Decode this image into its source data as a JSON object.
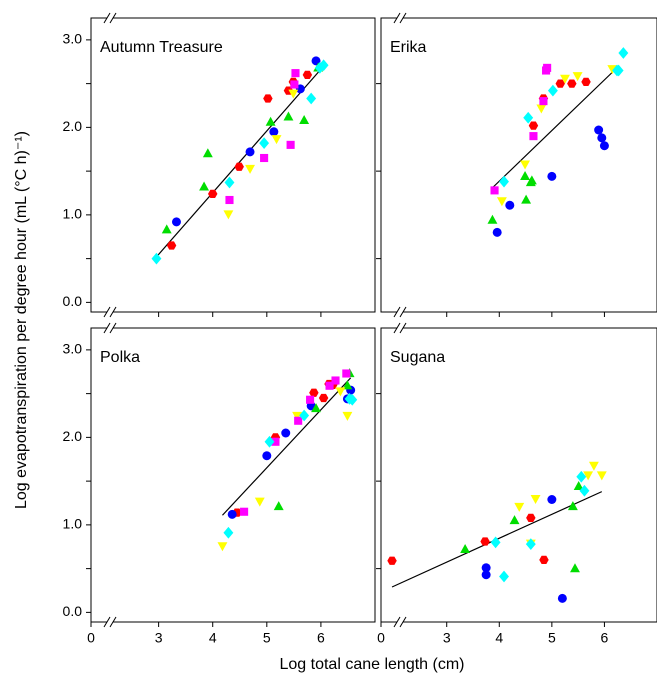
{
  "ylabel": "Log evapotranspiration per degree hour (mL (°C h)⁻¹)",
  "xlabel": "Log total cane length (cm)",
  "chart_data": [
    {
      "type": "scatter",
      "title": "Autumn Treasure",
      "x_break": true,
      "xlim": [
        1.75,
        7.0
      ],
      "ylim": [
        -0.11,
        3.25
      ],
      "xticks": [
        3,
        4,
        5,
        6
      ],
      "yticks": [
        {
          "value": 0,
          "label": "0.0"
        },
        0.5,
        {
          "value": 1,
          "label": "1.0"
        },
        1.5,
        {
          "value": 2,
          "label": "2.0"
        },
        2.5,
        {
          "value": 3,
          "label": "3.0"
        }
      ],
      "series": [
        {
          "color": "#ff0000",
          "marker": "hexagon",
          "x": [
            3.24,
            4.0,
            4.49,
            5.02,
            5.4,
            5.49,
            5.75
          ],
          "values": [
            0.65,
            1.24,
            1.55,
            2.33,
            2.42,
            2.52,
            2.6
          ]
        },
        {
          "color": "#0000ff",
          "marker": "circle",
          "x": [
            3.33,
            4.69,
            5.13,
            5.62,
            5.91
          ],
          "values": [
            0.92,
            1.72,
            1.95,
            2.44,
            2.76
          ]
        },
        {
          "color": "#00dd00",
          "marker": "triangle-up",
          "x": [
            3.15,
            3.84,
            3.91,
            5.07,
            5.4,
            5.69,
            5.95
          ],
          "values": [
            0.83,
            1.32,
            1.7,
            2.06,
            2.12,
            2.08,
            2.68
          ]
        },
        {
          "color": "#ffff00",
          "marker": "triangle-down",
          "x": [
            4.29,
            4.69,
            5.18,
            5.49
          ],
          "values": [
            1.01,
            1.53,
            1.87,
            2.39
          ]
        },
        {
          "color": "#ff00ff",
          "marker": "square",
          "x": [
            4.31,
            4.95,
            5.44,
            5.53,
            5.51
          ],
          "values": [
            1.17,
            1.65,
            1.8,
            2.62,
            2.49
          ]
        },
        {
          "color": "#00ffff",
          "marker": "diamond",
          "x": [
            2.96,
            4.31,
            4.95,
            5.82,
            5.98,
            6.05
          ],
          "values": [
            0.5,
            1.37,
            1.82,
            2.33,
            2.68,
            2.71
          ]
        }
      ],
      "fit": {
        "x": [
          2.96,
          6.05
        ],
        "values": [
          0.52,
          2.7
        ]
      }
    },
    {
      "type": "scatter",
      "title": "Erika",
      "x_break": true,
      "xlim": [
        1.75,
        7.0
      ],
      "ylim": [
        -0.11,
        3.25
      ],
      "xticks": [
        3,
        4,
        5,
        6
      ],
      "yticks": [
        0.5,
        1.5,
        2.5
      ],
      "series": [
        {
          "color": "#ff0000",
          "marker": "hexagon",
          "x": [
            4.84,
            5.16,
            5.38,
            5.65,
            4.65
          ],
          "values": [
            2.33,
            2.5,
            2.5,
            2.52,
            2.02
          ]
        },
        {
          "color": "#0000ff",
          "marker": "circle",
          "x": [
            3.96,
            4.2,
            5.0,
            5.89,
            5.95,
            6.0
          ],
          "values": [
            0.8,
            1.11,
            1.44,
            1.97,
            1.88,
            1.79
          ]
        },
        {
          "color": "#00dd00",
          "marker": "triangle-up",
          "x": [
            3.87,
            4.49,
            4.6,
            4.62,
            4.51
          ],
          "values": [
            0.94,
            1.44,
            1.37,
            1.39,
            1.17
          ]
        },
        {
          "color": "#ffff00",
          "marker": "triangle-down",
          "x": [
            4.05,
            4.49,
            4.8,
            5.25,
            5.49,
            6.15
          ],
          "values": [
            1.16,
            1.58,
            2.22,
            2.56,
            2.59,
            2.67
          ]
        },
        {
          "color": "#ff00ff",
          "marker": "square",
          "x": [
            3.91,
            4.84,
            4.89,
            4.91,
            4.65
          ],
          "values": [
            1.28,
            2.3,
            2.65,
            2.68,
            1.9
          ]
        },
        {
          "color": "#00ffff",
          "marker": "diamond",
          "x": [
            4.09,
            4.55,
            5.02,
            6.24,
            6.36,
            6.27
          ],
          "values": [
            1.38,
            2.11,
            2.42,
            2.65,
            2.85,
            2.65
          ]
        }
      ],
      "fit": {
        "x": [
          3.87,
          6.22
        ],
        "values": [
          1.31,
          2.67
        ]
      }
    },
    {
      "type": "scatter",
      "title": "Polka",
      "x_break": true,
      "xlim": [
        1.75,
        7.0
      ],
      "ylim": [
        -0.11,
        3.25
      ],
      "xticks": [
        0,
        3,
        4,
        5,
        6
      ],
      "yticks": [
        {
          "value": 0,
          "label": "0.0"
        },
        0.5,
        {
          "value": 1,
          "label": "1.0"
        },
        1.5,
        {
          "value": 2,
          "label": "2.0"
        },
        2.5,
        {
          "value": 3,
          "label": "3.0"
        }
      ],
      "series": [
        {
          "color": "#ff0000",
          "marker": "hexagon",
          "x": [
            4.45,
            5.16,
            5.87,
            6.15,
            6.22,
            6.05
          ],
          "values": [
            1.14,
            2.0,
            2.51,
            2.61,
            2.6,
            2.45
          ]
        },
        {
          "color": "#0000ff",
          "marker": "circle",
          "x": [
            4.36,
            5.0,
            5.35,
            5.82,
            6.49,
            6.55
          ],
          "values": [
            1.12,
            1.79,
            2.05,
            2.36,
            2.44,
            2.54
          ]
        },
        {
          "color": "#00dd00",
          "marker": "triangle-up",
          "x": [
            5.22,
            5.91,
            6.49,
            6.53
          ],
          "values": [
            1.21,
            2.33,
            2.59,
            2.73
          ]
        },
        {
          "color": "#ffff00",
          "marker": "triangle-down",
          "x": [
            4.18,
            4.87,
            5.56,
            6.49,
            6.36
          ],
          "values": [
            0.76,
            1.27,
            2.25,
            2.25,
            2.53
          ]
        },
        {
          "color": "#ff00ff",
          "marker": "square",
          "x": [
            4.58,
            5.16,
            5.58,
            5.8,
            6.27,
            6.47,
            6.16
          ],
          "values": [
            1.15,
            1.95,
            2.19,
            2.43,
            2.65,
            2.73,
            2.59
          ]
        },
        {
          "color": "#00ffff",
          "marker": "diamond",
          "x": [
            4.29,
            5.05,
            5.69,
            6.53,
            6.58
          ],
          "values": [
            0.91,
            1.95,
            2.25,
            2.44,
            2.43
          ]
        }
      ],
      "fit": {
        "x": [
          4.18,
          6.55
        ],
        "values": [
          1.11,
          2.68
        ]
      }
    },
    {
      "type": "scatter",
      "title": "Sugana",
      "x_break": true,
      "xlim": [
        1.75,
        7.0
      ],
      "ylim": [
        -0.11,
        3.25
      ],
      "xticks": [
        0,
        3,
        4,
        5,
        6
      ],
      "yticks": [
        0.5,
        1.5,
        2.5
      ],
      "series": [
        {
          "color": "#ff0000",
          "marker": "hexagon",
          "x": [
            1.96,
            3.73,
            4.6,
            4.85
          ],
          "values": [
            0.59,
            0.81,
            1.08,
            0.6
          ]
        },
        {
          "color": "#0000ff",
          "marker": "circle",
          "x": [
            3.75,
            3.75,
            5.0,
            5.2
          ],
          "values": [
            0.51,
            0.43,
            1.29,
            0.16
          ]
        },
        {
          "color": "#00dd00",
          "marker": "triangle-up",
          "x": [
            3.35,
            4.29,
            5.4,
            5.44,
            5.51
          ],
          "values": [
            0.72,
            1.05,
            1.21,
            0.5,
            1.44
          ]
        },
        {
          "color": "#ffff00",
          "marker": "triangle-down",
          "x": [
            4.38,
            4.69,
            4.6,
            5.69,
            5.8,
            5.95
          ],
          "values": [
            1.21,
            1.3,
            0.79,
            1.57,
            1.68,
            1.57
          ]
        },
        {
          "color": "#00ffff",
          "marker": "diamond",
          "x": [
            3.93,
            4.09,
            4.6,
            5.56,
            5.62
          ],
          "values": [
            0.8,
            0.41,
            0.78,
            1.55,
            1.39
          ]
        }
      ],
      "fit": {
        "x": [
          1.96,
          5.95
        ],
        "values": [
          0.29,
          1.38
        ]
      }
    }
  ]
}
